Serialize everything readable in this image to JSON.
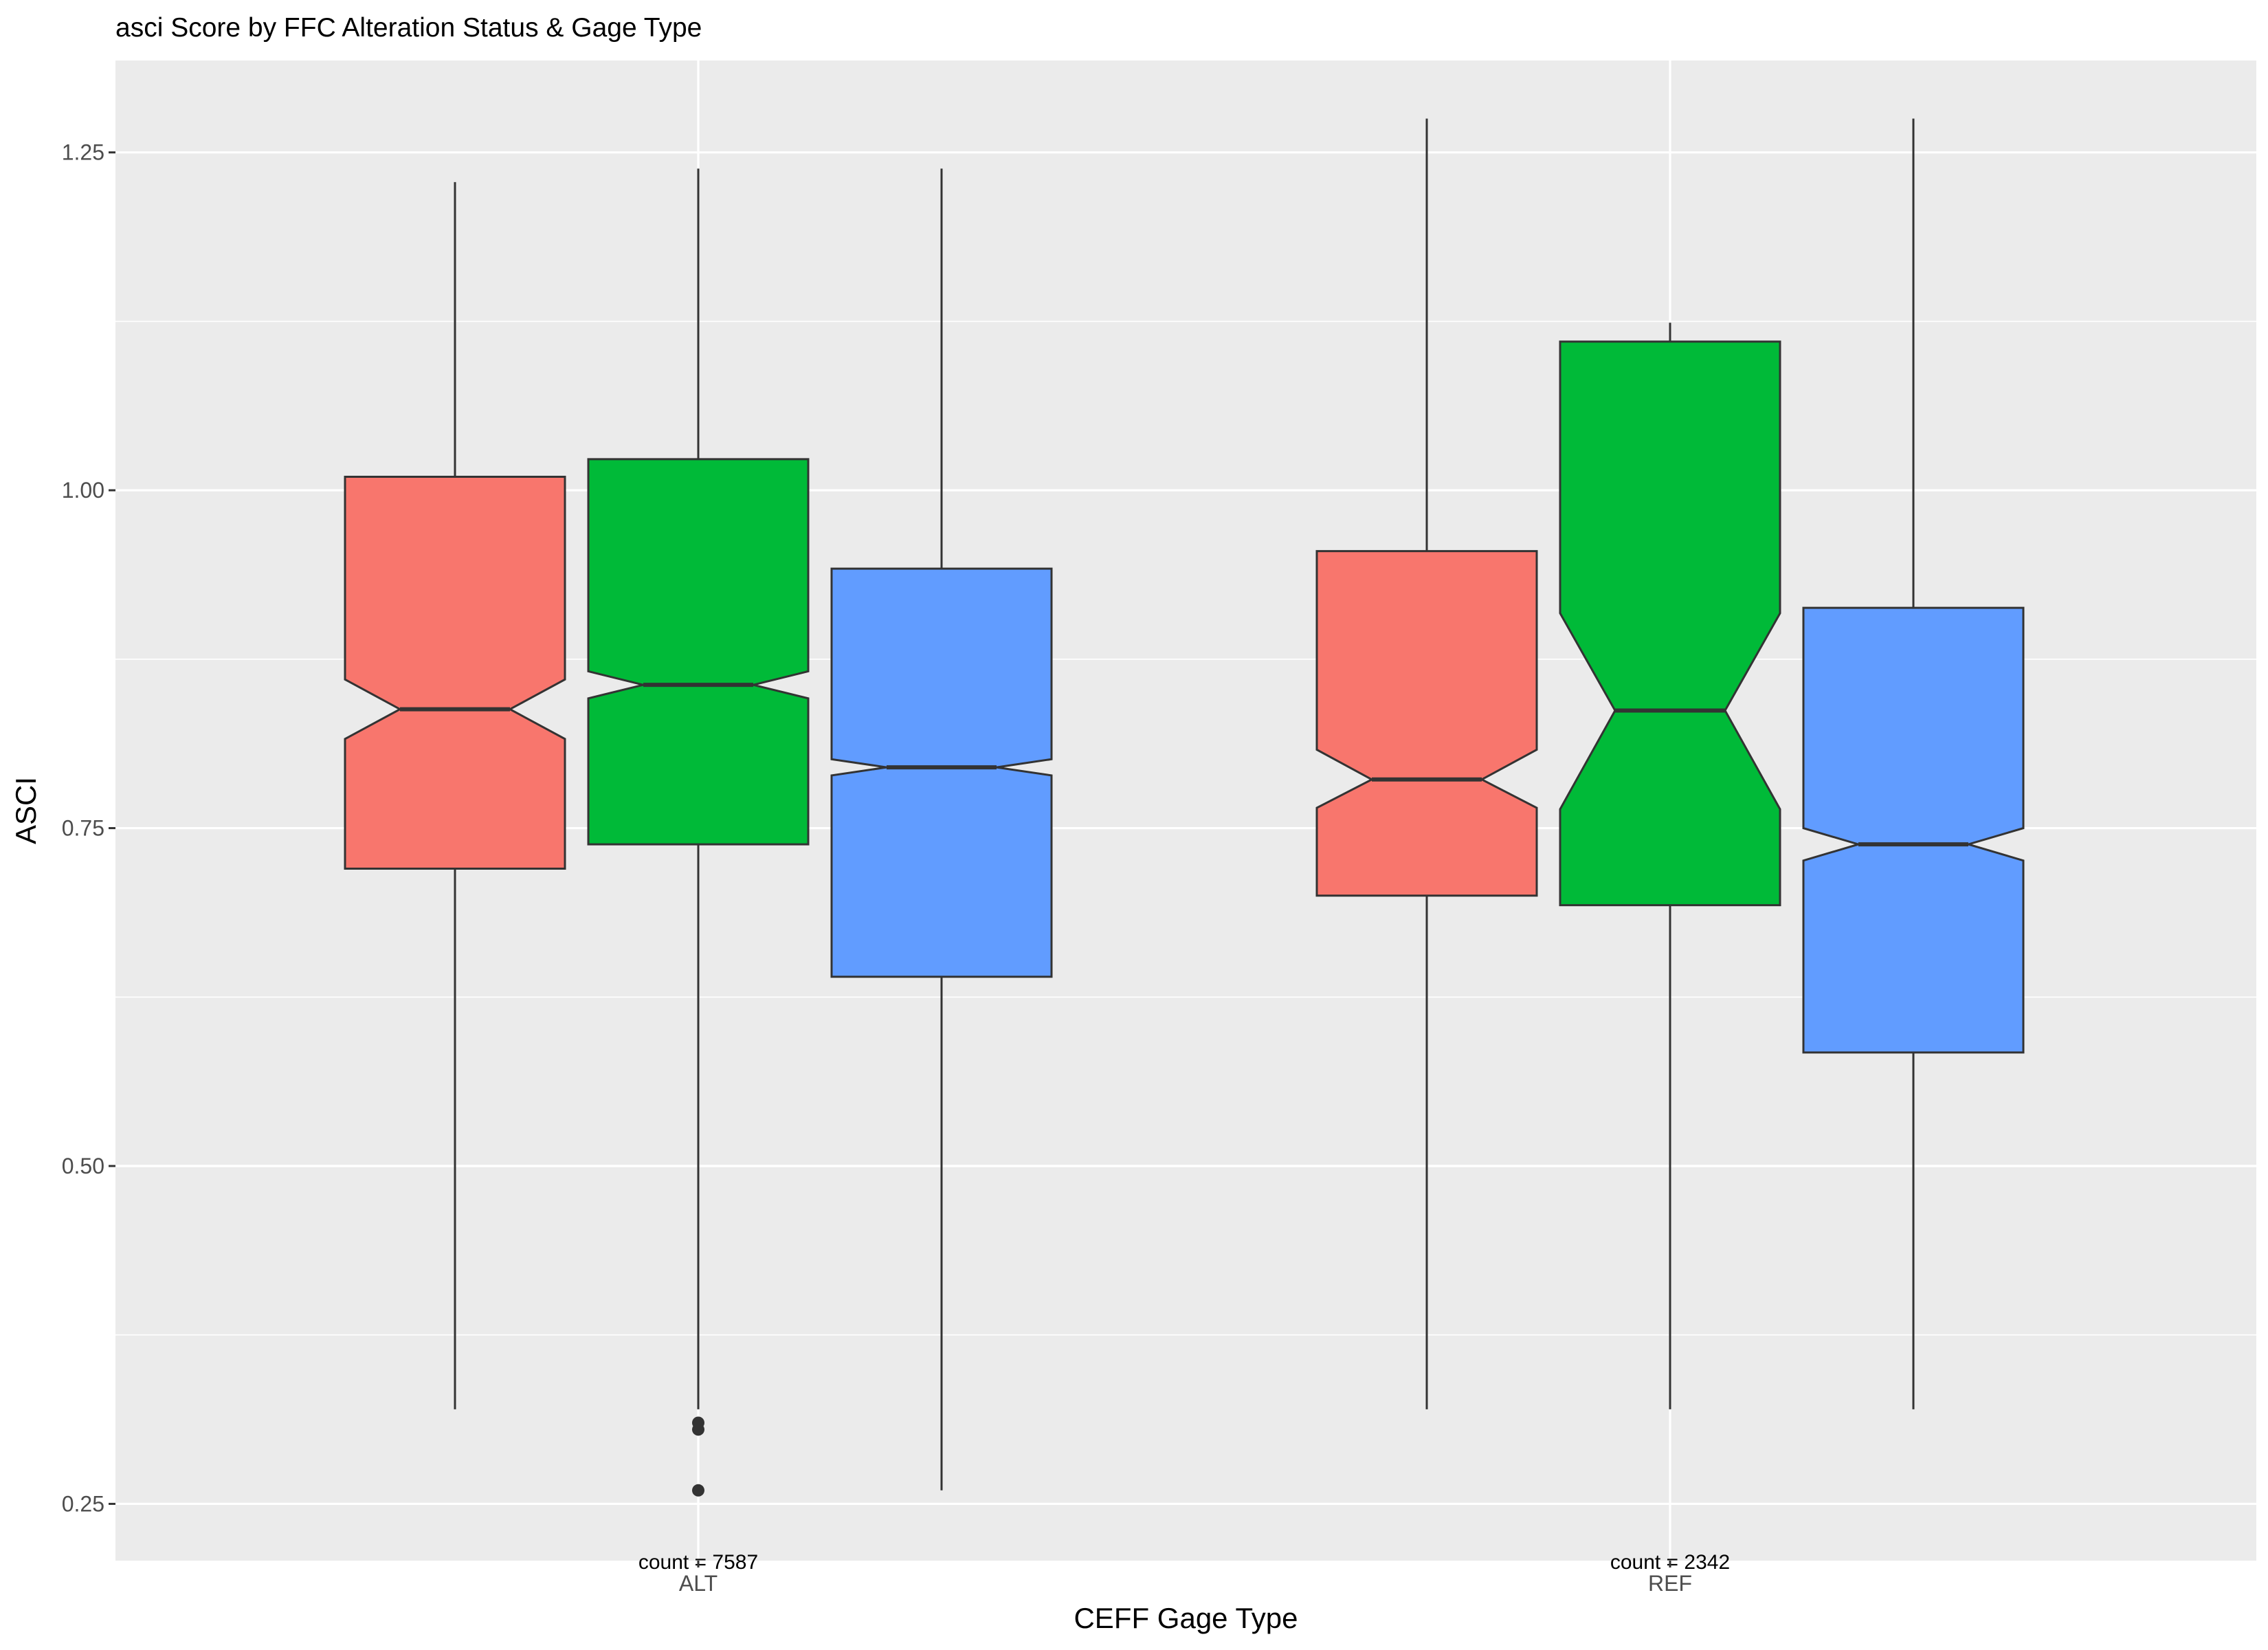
{
  "chart_data": {
    "type": "boxplot",
    "title": "asci Score by FFC Alteration Status & Gage Type",
    "xlabel": "CEFF Gage Type",
    "ylabel": "ASCI",
    "ylim": [
      0.208,
      1.318
    ],
    "yticks": [
      "0.25",
      "0.50",
      "0.75",
      "1.00",
      "1.25"
    ],
    "yticks_values": [
      0.25,
      0.5,
      0.75,
      1.0,
      1.25
    ],
    "grid": true,
    "notched": true,
    "legend": "none",
    "categories": [
      "ALT",
      "REF"
    ],
    "count_labels": [
      "count = 7587",
      "count = 2342"
    ],
    "series": [
      {
        "color": "#F8766D",
        "boxes": [
          {
            "category": "ALT",
            "whisker_low": 0.32,
            "q1": 0.72,
            "median": 0.838,
            "q3": 1.01,
            "whisker_high": 1.228,
            "notch_low": 0.816,
            "notch_high": 0.86,
            "outliers": []
          },
          {
            "category": "REF",
            "whisker_low": 0.32,
            "q1": 0.7,
            "median": 0.786,
            "q3": 0.955,
            "whisker_high": 1.275,
            "notch_low": 0.765,
            "notch_high": 0.808,
            "outliers": []
          }
        ]
      },
      {
        "color": "#00BA38",
        "boxes": [
          {
            "category": "ALT",
            "whisker_low": 0.32,
            "q1": 0.738,
            "median": 0.856,
            "q3": 1.023,
            "whisker_high": 1.238,
            "notch_low": 0.846,
            "notch_high": 0.866,
            "outliers": [
              0.26,
              0.305,
              0.31
            ]
          },
          {
            "category": "REF",
            "whisker_low": 0.32,
            "q1": 0.693,
            "median": 0.837,
            "q3": 1.11,
            "whisker_high": 1.124,
            "notch_low": 0.764,
            "notch_high": 0.909,
            "outliers": []
          }
        ]
      },
      {
        "color": "#619CFF",
        "boxes": [
          {
            "category": "ALT",
            "whisker_low": 0.26,
            "q1": 0.64,
            "median": 0.795,
            "q3": 0.942,
            "whisker_high": 1.238,
            "notch_low": 0.789,
            "notch_high": 0.801,
            "outliers": []
          },
          {
            "category": "REF",
            "whisker_low": 0.32,
            "q1": 0.584,
            "median": 0.738,
            "q3": 0.913,
            "whisker_high": 1.275,
            "notch_low": 0.726,
            "notch_high": 0.75,
            "outliers": []
          }
        ]
      }
    ]
  }
}
